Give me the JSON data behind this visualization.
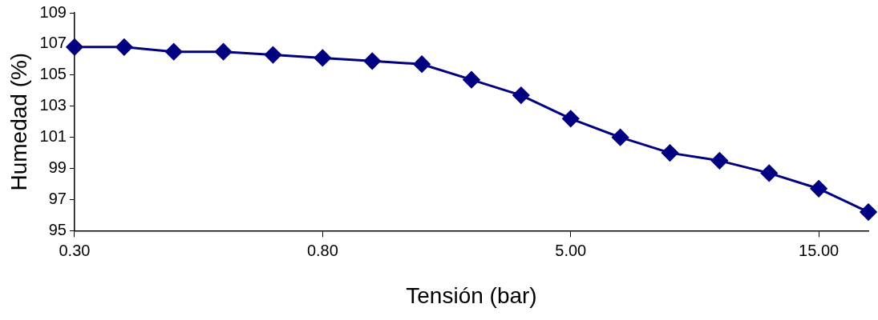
{
  "chart_data": {
    "type": "line",
    "xlabel": "Tensión (bar)",
    "ylabel": "Humedad (%)",
    "categories": [
      "0.30",
      null,
      null,
      null,
      null,
      "0.80",
      null,
      null,
      null,
      null,
      "5.00",
      null,
      null,
      null,
      null,
      "15.00",
      null
    ],
    "series": [
      {
        "color": "#000080",
        "values": [
          106.8,
          106.8,
          106.5,
          106.5,
          106.3,
          106.1,
          105.9,
          105.7,
          104.7,
          103.7,
          102.2,
          101.0,
          100.0,
          99.5,
          98.7,
          97.7,
          96.2
        ]
      }
    ],
    "ylim": [
      95,
      109
    ],
    "yticks": [
      95,
      97,
      99,
      101,
      103,
      105,
      107,
      109
    ],
    "grid": false,
    "legend": false,
    "marker": "diamond",
    "line_style": "solid"
  }
}
